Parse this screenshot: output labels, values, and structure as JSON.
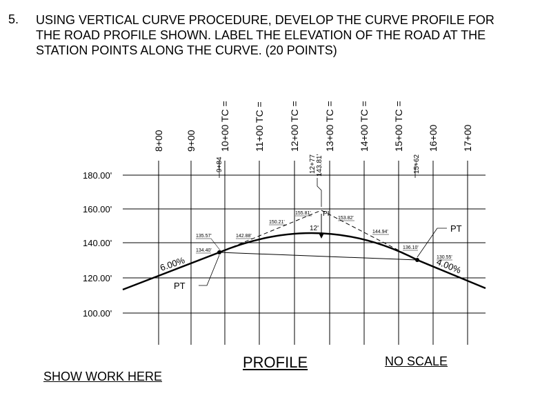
{
  "question": {
    "number": "5.",
    "lines": [
      "USING VERTICAL CURVE PROCEDURE, DEVELOP THE CURVE PROFILE FOR",
      "THE ROAD PROFILE SHOWN.  LABEL THE ELEVATION OF THE ROAD AT THE",
      "STATION POINTS ALONG THE CURVE. (20 POINTS)"
    ]
  },
  "elevation_labels": [
    "180.00'",
    "160.00'",
    "140.00'",
    "120.00'",
    "100.00'"
  ],
  "station_labels": [
    "8+00",
    "9+00",
    "10+00 TC =",
    "11+00 TC =",
    "12+00 TC =",
    "13+00 TC =",
    "14+00 TC =",
    "15+00 TC =",
    "16+00",
    "17+00"
  ],
  "special_stations": {
    "pc_station": "9+84",
    "pi_station_a": "12+77",
    "pi_station_b": "143.81'",
    "pt_station": "15+62"
  },
  "point_labels": {
    "pc": "PT",
    "pi": "PI",
    "pt": "PT",
    "middle_offset": "12'"
  },
  "grades": {
    "entry": "6.00%",
    "exit": "4.00%"
  },
  "small_elevations": {
    "e_135_57": "135.57'",
    "e_134_40": "134.40'",
    "e_142_88": "142.88'",
    "e_150_21": "150.21'",
    "e_155_81": "155.81'",
    "e_153_82": "153.82'",
    "e_144_94": "144.94'",
    "e_136_10": "136.10'",
    "e_130_55": "130.55'"
  },
  "footer": {
    "show_work": "SHOW WORK HERE",
    "profile": "PROFILE",
    "no_scale": "NO SCALE"
  }
}
